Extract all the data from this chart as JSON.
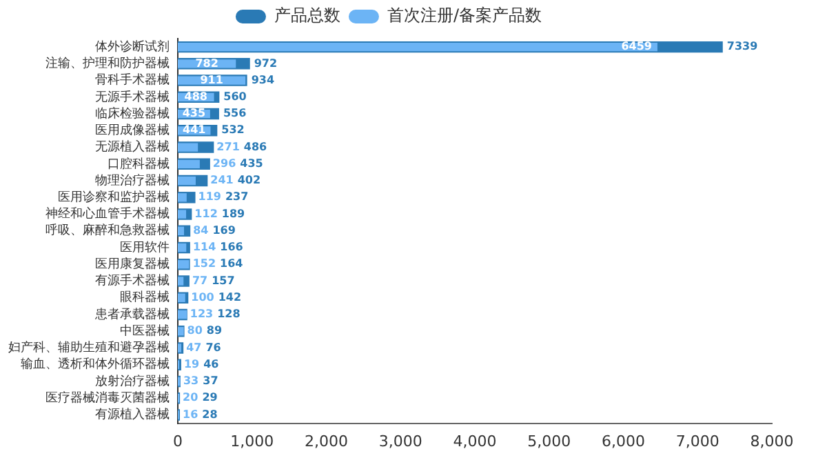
{
  "chart_data": {
    "type": "bar",
    "orientation": "horizontal",
    "categories": [
      "体外诊断试剂",
      "注输、护理和防护器械",
      "骨科手术器械",
      "无源手术器械",
      "临床检验器械",
      "医用成像器械",
      "无源植入器械",
      "口腔科器械",
      "物理治疗器械",
      "医用诊察和监护器械",
      "神经和心血管手术器械",
      "呼吸、麻醉和急救器械",
      "医用软件",
      "医用康复器械",
      "有源手术器械",
      "眼科器械",
      "患者承载器械",
      "中医器械",
      "妇产科、辅助生殖和避孕器械",
      "输血、透析和体外循环器械",
      "放射治疗器械",
      "医疗器械消毒灭菌器械",
      "有源植入器械"
    ],
    "series": [
      {
        "name": "产品总数",
        "color": "#2a7ab5",
        "values": [
          7339,
          972,
          934,
          560,
          556,
          532,
          486,
          435,
          402,
          237,
          189,
          169,
          166,
          164,
          157,
          142,
          128,
          89,
          76,
          46,
          37,
          29,
          28
        ]
      },
      {
        "name": "首次注册/备案产品数",
        "color": "#6cb4f5",
        "values": [
          6459,
          782,
          911,
          488,
          435,
          441,
          271,
          296,
          241,
          119,
          112,
          84,
          114,
          152,
          77,
          100,
          123,
          80,
          47,
          19,
          33,
          20,
          16
        ]
      }
    ],
    "xlim": [
      0,
      8000
    ],
    "xticks": [
      {
        "value": 0,
        "label": "0"
      },
      {
        "value": 1000,
        "label": "1,000"
      },
      {
        "value": 2000,
        "label": "2,000"
      },
      {
        "value": 3000,
        "label": "3,000"
      },
      {
        "value": 4000,
        "label": "4,000"
      },
      {
        "value": 5000,
        "label": "5,000"
      },
      {
        "value": 6000,
        "label": "6,000"
      },
      {
        "value": 7000,
        "label": "7,000"
      },
      {
        "value": 8000,
        "label": "8,000"
      }
    ],
    "grid": false,
    "legend": "top",
    "data_labels": true
  }
}
